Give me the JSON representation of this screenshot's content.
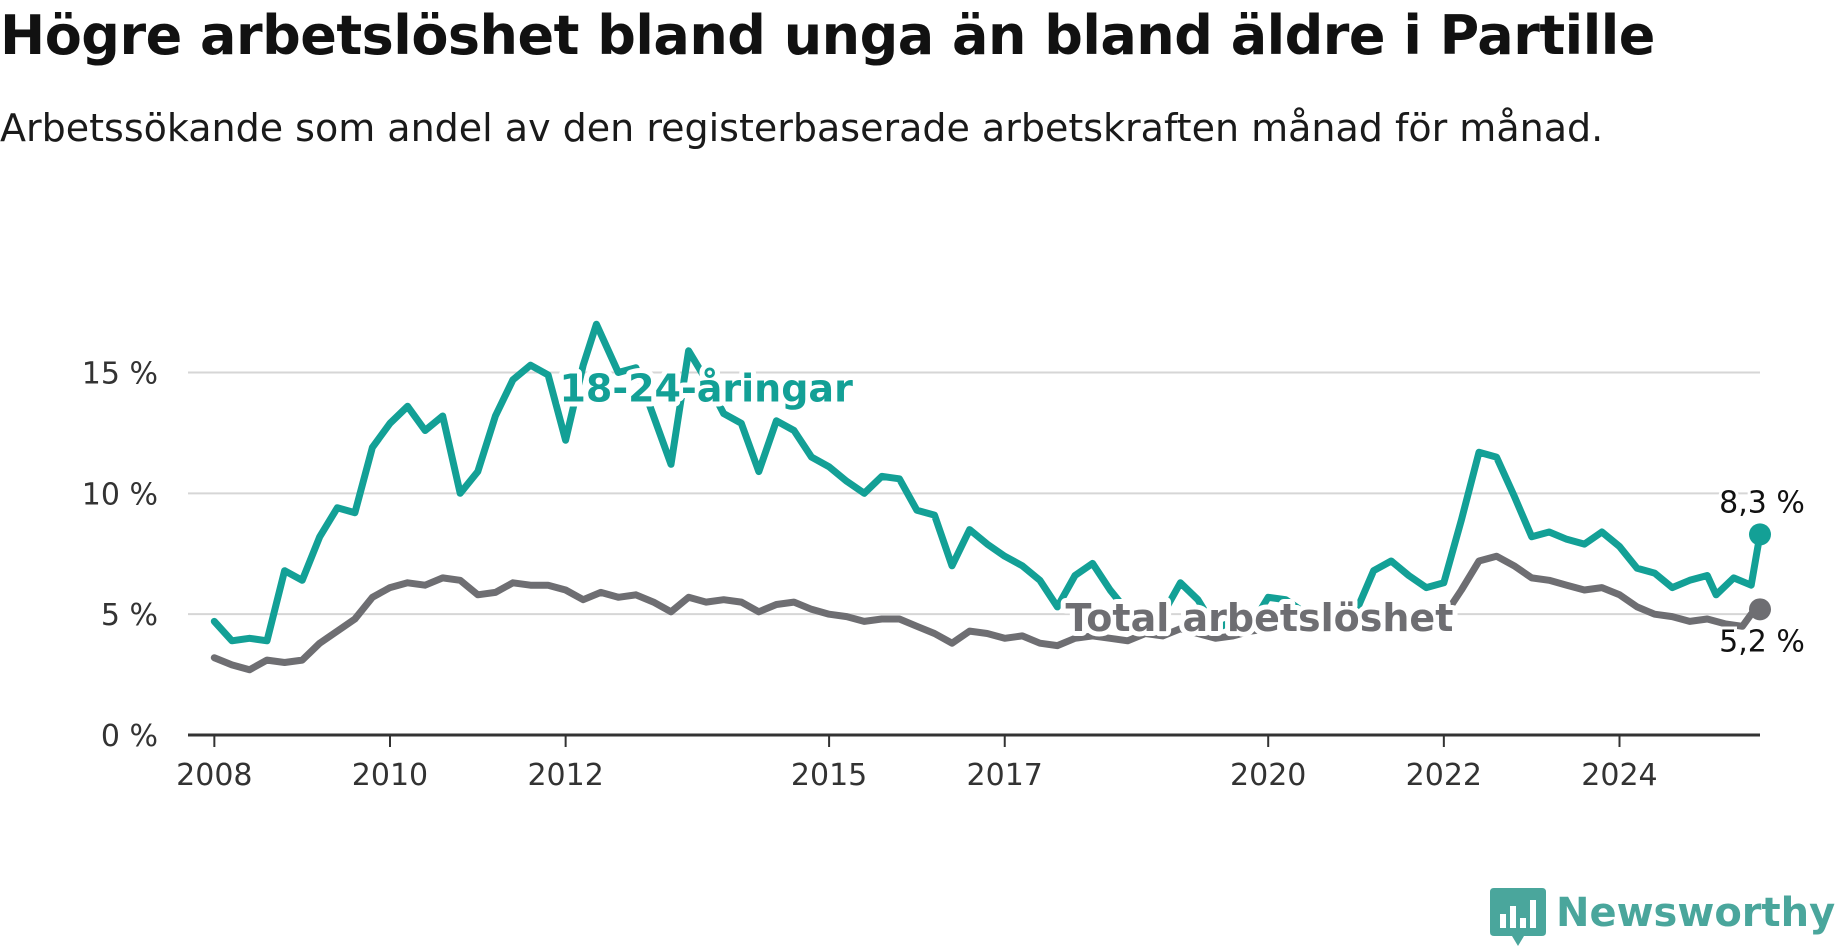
{
  "title": "Högre arbetslöshet bland unga än bland äldre i Partille",
  "subtitle": "Arbetssökande som andel av den registerbaserade arbetskraften månad för månad.",
  "brand": {
    "name": "Newsworthy",
    "color": "#4aa69c",
    "icon": "newsworthy-logo-icon"
  },
  "chart_data": {
    "type": "line",
    "title": "",
    "xlabel": "",
    "ylabel": "",
    "ylim": [
      0,
      18
    ],
    "xlim": [
      2007.7,
      2025.6
    ],
    "yticks": [
      0,
      5,
      10,
      15
    ],
    "ytick_labels": [
      "0 %",
      "5 %",
      "10 %",
      "15 %"
    ],
    "xticks": [
      2008,
      2010,
      2012,
      2015,
      2017,
      2020,
      2022,
      2024
    ],
    "xtick_labels": [
      "2008",
      "2010",
      "2012",
      "2015",
      "2017",
      "2020",
      "2022",
      "2024"
    ],
    "grid": "horizontal",
    "colors": {
      "youth": "#13a096",
      "total": "#6e6e72"
    },
    "series": [
      {
        "name": "18-24-åringar",
        "label_x": 2013.6,
        "label_y": 13.8,
        "end_label": "8,3 %",
        "points": [
          [
            2008.0,
            4.7
          ],
          [
            2008.2,
            3.9
          ],
          [
            2008.4,
            4.0
          ],
          [
            2008.6,
            3.9
          ],
          [
            2008.8,
            6.8
          ],
          [
            2009.0,
            6.4
          ],
          [
            2009.2,
            8.2
          ],
          [
            2009.4,
            9.4
          ],
          [
            2009.6,
            9.2
          ],
          [
            2009.8,
            11.9
          ],
          [
            2010.0,
            12.9
          ],
          [
            2010.2,
            13.6
          ],
          [
            2010.4,
            12.6
          ],
          [
            2010.6,
            13.2
          ],
          [
            2010.8,
            10.0
          ],
          [
            2011.0,
            10.9
          ],
          [
            2011.2,
            13.2
          ],
          [
            2011.4,
            14.7
          ],
          [
            2011.6,
            15.3
          ],
          [
            2011.8,
            14.9
          ],
          [
            2012.0,
            12.2
          ],
          [
            2012.2,
            15.3
          ],
          [
            2012.35,
            17.0
          ],
          [
            2012.6,
            15.0
          ],
          [
            2012.8,
            15.2
          ],
          [
            2013.0,
            13.2
          ],
          [
            2013.2,
            11.2
          ],
          [
            2013.4,
            15.9
          ],
          [
            2013.6,
            14.7
          ],
          [
            2013.8,
            13.3
          ],
          [
            2014.0,
            12.9
          ],
          [
            2014.2,
            10.9
          ],
          [
            2014.4,
            13.0
          ],
          [
            2014.6,
            12.6
          ],
          [
            2014.8,
            11.5
          ],
          [
            2015.0,
            11.1
          ],
          [
            2015.2,
            10.5
          ],
          [
            2015.4,
            10.0
          ],
          [
            2015.6,
            10.7
          ],
          [
            2015.8,
            10.6
          ],
          [
            2016.0,
            9.3
          ],
          [
            2016.2,
            9.1
          ],
          [
            2016.4,
            7.0
          ],
          [
            2016.6,
            8.5
          ],
          [
            2016.8,
            7.9
          ],
          [
            2017.0,
            7.4
          ],
          [
            2017.2,
            7.0
          ],
          [
            2017.4,
            6.4
          ],
          [
            2017.6,
            5.3
          ],
          [
            2017.8,
            6.6
          ],
          [
            2018.0,
            7.1
          ],
          [
            2018.2,
            6.0
          ],
          [
            2018.4,
            5.1
          ],
          [
            2018.6,
            5.1
          ],
          [
            2018.8,
            5.0
          ],
          [
            2019.0,
            6.3
          ],
          [
            2019.2,
            5.6
          ],
          [
            2019.4,
            4.4
          ],
          [
            2019.6,
            4.7
          ],
          [
            2019.8,
            4.5
          ],
          [
            2020.0,
            5.7
          ],
          [
            2020.2,
            5.6
          ],
          [
            2020.4,
            5.1
          ],
          [
            2020.6,
            4.8
          ],
          [
            2020.8,
            4.9
          ],
          [
            2021.0,
            5.1
          ],
          [
            2021.2,
            6.8
          ],
          [
            2021.4,
            7.2
          ],
          [
            2021.6,
            6.6
          ],
          [
            2021.8,
            6.1
          ],
          [
            2022.0,
            6.3
          ],
          [
            2022.2,
            8.9
          ],
          [
            2022.4,
            11.7
          ],
          [
            2022.6,
            11.5
          ],
          [
            2022.8,
            9.9
          ],
          [
            2023.0,
            8.2
          ],
          [
            2023.2,
            8.4
          ],
          [
            2023.4,
            8.1
          ],
          [
            2023.6,
            7.9
          ],
          [
            2023.8,
            8.4
          ],
          [
            2024.0,
            7.8
          ],
          [
            2024.2,
            6.9
          ],
          [
            2024.4,
            6.7
          ],
          [
            2024.6,
            6.1
          ],
          [
            2024.8,
            6.4
          ],
          [
            2025.0,
            6.6
          ],
          [
            2025.1,
            5.8
          ],
          [
            2025.3,
            6.5
          ],
          [
            2025.5,
            6.2
          ],
          [
            2025.6,
            8.3
          ]
        ]
      },
      {
        "name": "Total arbetslöshet",
        "label_x": 2019.9,
        "label_y": 4.3,
        "end_label": "5,2 %",
        "points": [
          [
            2008.0,
            3.2
          ],
          [
            2008.2,
            2.9
          ],
          [
            2008.4,
            2.7
          ],
          [
            2008.6,
            3.1
          ],
          [
            2008.8,
            3.0
          ],
          [
            2009.0,
            3.1
          ],
          [
            2009.2,
            3.8
          ],
          [
            2009.4,
            4.3
          ],
          [
            2009.6,
            4.8
          ],
          [
            2009.8,
            5.7
          ],
          [
            2010.0,
            6.1
          ],
          [
            2010.2,
            6.3
          ],
          [
            2010.4,
            6.2
          ],
          [
            2010.6,
            6.5
          ],
          [
            2010.8,
            6.4
          ],
          [
            2011.0,
            5.8
          ],
          [
            2011.2,
            5.9
          ],
          [
            2011.4,
            6.3
          ],
          [
            2011.6,
            6.2
          ],
          [
            2011.8,
            6.2
          ],
          [
            2012.0,
            6.0
          ],
          [
            2012.2,
            5.6
          ],
          [
            2012.4,
            5.9
          ],
          [
            2012.6,
            5.7
          ],
          [
            2012.8,
            5.8
          ],
          [
            2013.0,
            5.5
          ],
          [
            2013.2,
            5.1
          ],
          [
            2013.4,
            5.7
          ],
          [
            2013.6,
            5.5
          ],
          [
            2013.8,
            5.6
          ],
          [
            2014.0,
            5.5
          ],
          [
            2014.2,
            5.1
          ],
          [
            2014.4,
            5.4
          ],
          [
            2014.6,
            5.5
          ],
          [
            2014.8,
            5.2
          ],
          [
            2015.0,
            5.0
          ],
          [
            2015.2,
            4.9
          ],
          [
            2015.4,
            4.7
          ],
          [
            2015.6,
            4.8
          ],
          [
            2015.8,
            4.8
          ],
          [
            2016.0,
            4.5
          ],
          [
            2016.2,
            4.2
          ],
          [
            2016.4,
            3.8
          ],
          [
            2016.6,
            4.3
          ],
          [
            2016.8,
            4.2
          ],
          [
            2017.0,
            4.0
          ],
          [
            2017.2,
            4.1
          ],
          [
            2017.4,
            3.8
          ],
          [
            2017.6,
            3.7
          ],
          [
            2017.8,
            4.0
          ],
          [
            2018.0,
            4.1
          ],
          [
            2018.2,
            4.0
          ],
          [
            2018.4,
            3.9
          ],
          [
            2018.6,
            4.2
          ],
          [
            2018.8,
            4.1
          ],
          [
            2019.0,
            4.4
          ],
          [
            2019.2,
            4.2
          ],
          [
            2019.4,
            4.0
          ],
          [
            2019.6,
            4.1
          ],
          [
            2019.8,
            4.3
          ],
          [
            2020.0,
            4.4
          ],
          [
            2020.2,
            4.5
          ],
          [
            2020.4,
            4.6
          ],
          [
            2020.6,
            4.7
          ],
          [
            2020.8,
            4.5
          ],
          [
            2021.0,
            4.9
          ],
          [
            2021.2,
            5.1
          ],
          [
            2021.4,
            5.0
          ],
          [
            2021.6,
            4.8
          ],
          [
            2021.8,
            4.6
          ],
          [
            2022.0,
            4.9
          ],
          [
            2022.2,
            6.0
          ],
          [
            2022.4,
            7.2
          ],
          [
            2022.6,
            7.4
          ],
          [
            2022.8,
            7.0
          ],
          [
            2023.0,
            6.5
          ],
          [
            2023.2,
            6.4
          ],
          [
            2023.4,
            6.2
          ],
          [
            2023.6,
            6.0
          ],
          [
            2023.8,
            6.1
          ],
          [
            2024.0,
            5.8
          ],
          [
            2024.2,
            5.3
          ],
          [
            2024.4,
            5.0
          ],
          [
            2024.6,
            4.9
          ],
          [
            2024.8,
            4.7
          ],
          [
            2025.0,
            4.8
          ],
          [
            2025.2,
            4.6
          ],
          [
            2025.4,
            4.5
          ],
          [
            2025.5,
            5.0
          ],
          [
            2025.6,
            5.2
          ]
        ]
      }
    ]
  }
}
